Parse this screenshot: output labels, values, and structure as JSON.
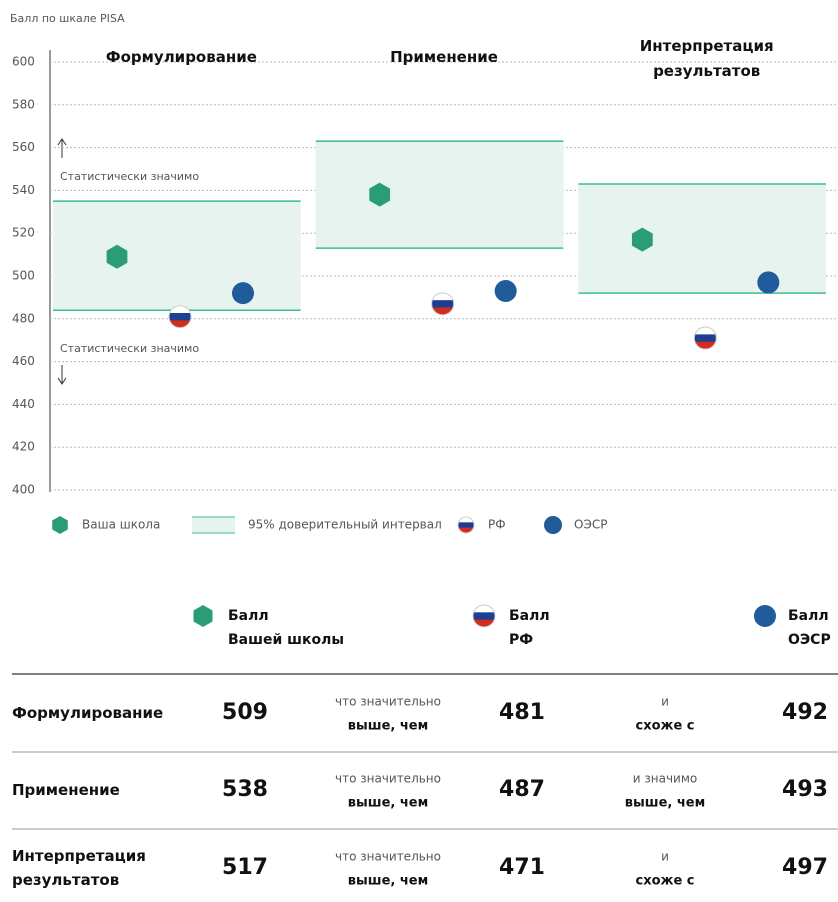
{
  "chart_data": {
    "type": "dot",
    "y_label": "Балл по шкале PISA",
    "categories": [
      "Формулирование",
      "Применение",
      "Интерпретация результатов"
    ],
    "ylim": [
      400,
      600
    ],
    "yticks": [
      400,
      420,
      440,
      460,
      480,
      500,
      520,
      540,
      560,
      580,
      600
    ],
    "grid": true,
    "series": [
      {
        "name": "Ваша школа",
        "marker": "hexagon",
        "color": "#2a9d78",
        "values": [
          509,
          538,
          517
        ]
      },
      {
        "name": "РФ",
        "marker": "flag",
        "colors": [
          "#ffffff",
          "#1c3f94",
          "#d52b1e"
        ],
        "values": [
          481,
          487,
          471
        ]
      },
      {
        "name": "ОЭСР",
        "marker": "circle",
        "color": "#1f5c99",
        "values": [
          492,
          493,
          497
        ]
      }
    ],
    "interval": {
      "name": "95% доверительный интервал",
      "color": "#e6f3ef",
      "line_color": "#3dbb93",
      "lower": [
        484,
        513,
        492
      ],
      "upper": [
        535,
        563,
        543
      ]
    },
    "annotations": [
      "Статистически значимо",
      "Статистически значимо"
    ]
  },
  "table": {
    "headers": [
      [
        "Балл",
        "Вашей школы"
      ],
      [
        "Балл",
        "РФ"
      ],
      [
        "Балл",
        "ОЭСР"
      ]
    ],
    "comparisons": [
      [
        [
          "что значительно",
          "выше, чем"
        ],
        [
          "и",
          "схоже с"
        ]
      ],
      [
        [
          "что значительно",
          "выше, чем"
        ],
        [
          "и значимо",
          "выше, чем"
        ]
      ],
      [
        [
          "что значительно",
          "выше, чем"
        ],
        [
          "и",
          "схоже с"
        ]
      ]
    ]
  }
}
